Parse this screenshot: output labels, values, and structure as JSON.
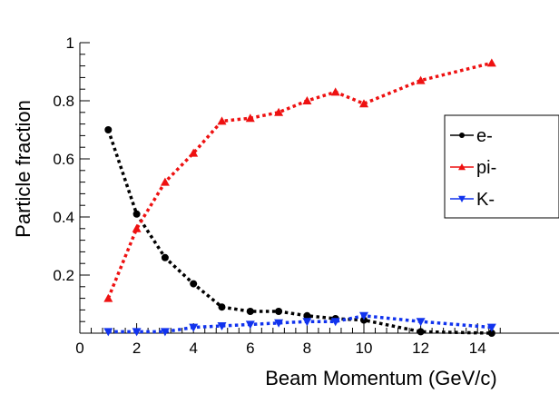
{
  "chart_data": {
    "type": "line",
    "xlabel": "Beam Momentum (GeV/c)",
    "ylabel": "Particle fraction",
    "xlim": [
      0,
      15
    ],
    "ylim": [
      0,
      1
    ],
    "x_ticks": [
      0,
      2,
      4,
      6,
      8,
      10,
      12,
      14
    ],
    "y_ticks": [
      0.2,
      0.4,
      0.6,
      0.8,
      1
    ],
    "legend_position": "right",
    "grid": false,
    "series": [
      {
        "name": "e-",
        "color": "#000000",
        "marker": "circle",
        "x": [
          1,
          2,
          3,
          4,
          5,
          6,
          7,
          8,
          9,
          10,
          12,
          14.5
        ],
        "y": [
          0.7,
          0.41,
          0.26,
          0.17,
          0.09,
          0.075,
          0.075,
          0.06,
          0.05,
          0.045,
          0.005,
          0.0
        ]
      },
      {
        "name": "pi-",
        "color": "#ee1111",
        "marker": "triangle-up",
        "x": [
          1,
          2,
          3,
          4,
          5,
          6,
          7,
          8,
          9,
          10,
          12,
          14.5
        ],
        "y": [
          0.12,
          0.36,
          0.52,
          0.62,
          0.73,
          0.74,
          0.76,
          0.8,
          0.83,
          0.79,
          0.87,
          0.93
        ]
      },
      {
        "name": "K-",
        "color": "#1133ee",
        "marker": "triangle-down",
        "x": [
          1,
          2,
          3,
          4,
          5,
          6,
          7,
          8,
          9,
          10,
          12,
          14.5
        ],
        "y": [
          0.005,
          0.005,
          0.005,
          0.02,
          0.025,
          0.03,
          0.035,
          0.04,
          0.04,
          0.06,
          0.04,
          0.02
        ]
      }
    ]
  }
}
